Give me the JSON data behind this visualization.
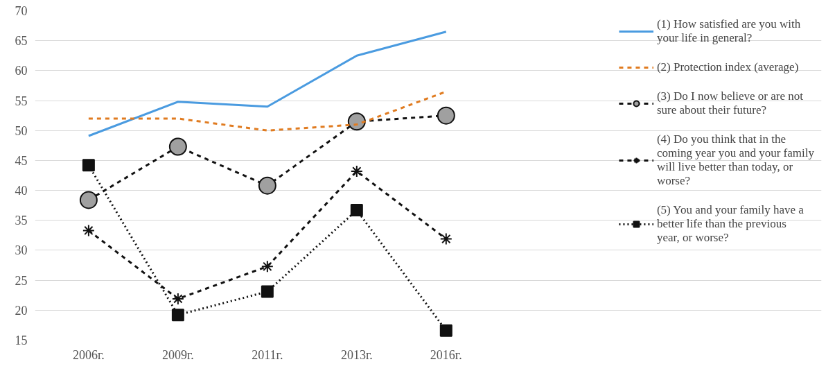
{
  "chart_data": {
    "type": "line",
    "categories": [
      "2006г.",
      "2009г.",
      "2011г.",
      "2013г.",
      "2016г."
    ],
    "ylim": [
      15,
      70
    ],
    "yticks": [
      15,
      20,
      25,
      30,
      35,
      40,
      45,
      50,
      55,
      60,
      65,
      70
    ],
    "grid": "y",
    "legend": "right",
    "series": [
      {
        "name": "(1) How satisfied are you with your life in general?",
        "color": "#4a9be0",
        "line_style": "solid",
        "marker": "none",
        "values": [
          49.1,
          54.8,
          54.0,
          62.5,
          66.5
        ]
      },
      {
        "name": "(2) Protection index (average)",
        "color": "#e07b20",
        "line_style": "dashed",
        "marker": "none",
        "values": [
          52.0,
          52.0,
          50.0,
          51.0,
          56.5
        ]
      },
      {
        "name": "(3) Do I now believe or are not sure about their future?",
        "color": "#111111",
        "line_style": "dashed",
        "marker": "circle",
        "values": [
          38.4,
          47.3,
          40.8,
          51.5,
          52.5
        ]
      },
      {
        "name": "(4) Do you think that in the coming year you and your family will live better than today, or worse?",
        "color": "#111111",
        "line_style": "dashed",
        "marker": "cross",
        "values": [
          33.3,
          21.9,
          27.3,
          43.2,
          31.9
        ]
      },
      {
        "name": "(5) You and your family have a better life than the previous year, or worse?",
        "color": "#111111",
        "line_style": "dotted",
        "marker": "square",
        "values": [
          44.2,
          19.2,
          23.1,
          36.7,
          16.6
        ]
      }
    ]
  }
}
